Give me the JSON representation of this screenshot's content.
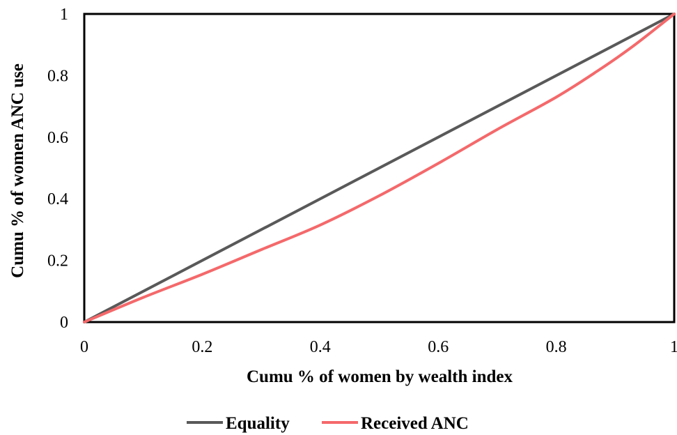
{
  "chart_data": {
    "type": "line",
    "xlabel": "Cumu % of women by wealth index",
    "ylabel": "Cumu % of women ANC use",
    "xlim": [
      0,
      1
    ],
    "ylim": [
      0,
      1
    ],
    "x_ticks": [
      "0",
      "0.2",
      "0.4",
      "0.6",
      "0.8",
      "1"
    ],
    "y_ticks": [
      "0",
      "0.2",
      "0.4",
      "0.6",
      "0.8",
      "1"
    ],
    "grid": false,
    "legend_position": "bottom",
    "series": [
      {
        "name": "Equality",
        "color": "#595959",
        "x": [
          0,
          1
        ],
        "y": [
          0,
          1
        ]
      },
      {
        "name": "Received ANC",
        "color": "#f4696b",
        "x": [
          0,
          0.1,
          0.2,
          0.3,
          0.4,
          0.5,
          0.6,
          0.7,
          0.8,
          0.87,
          0.93,
          1
        ],
        "y": [
          0,
          0.08,
          0.155,
          0.235,
          0.315,
          0.41,
          0.515,
          0.625,
          0.73,
          0.815,
          0.895,
          1
        ]
      }
    ]
  }
}
